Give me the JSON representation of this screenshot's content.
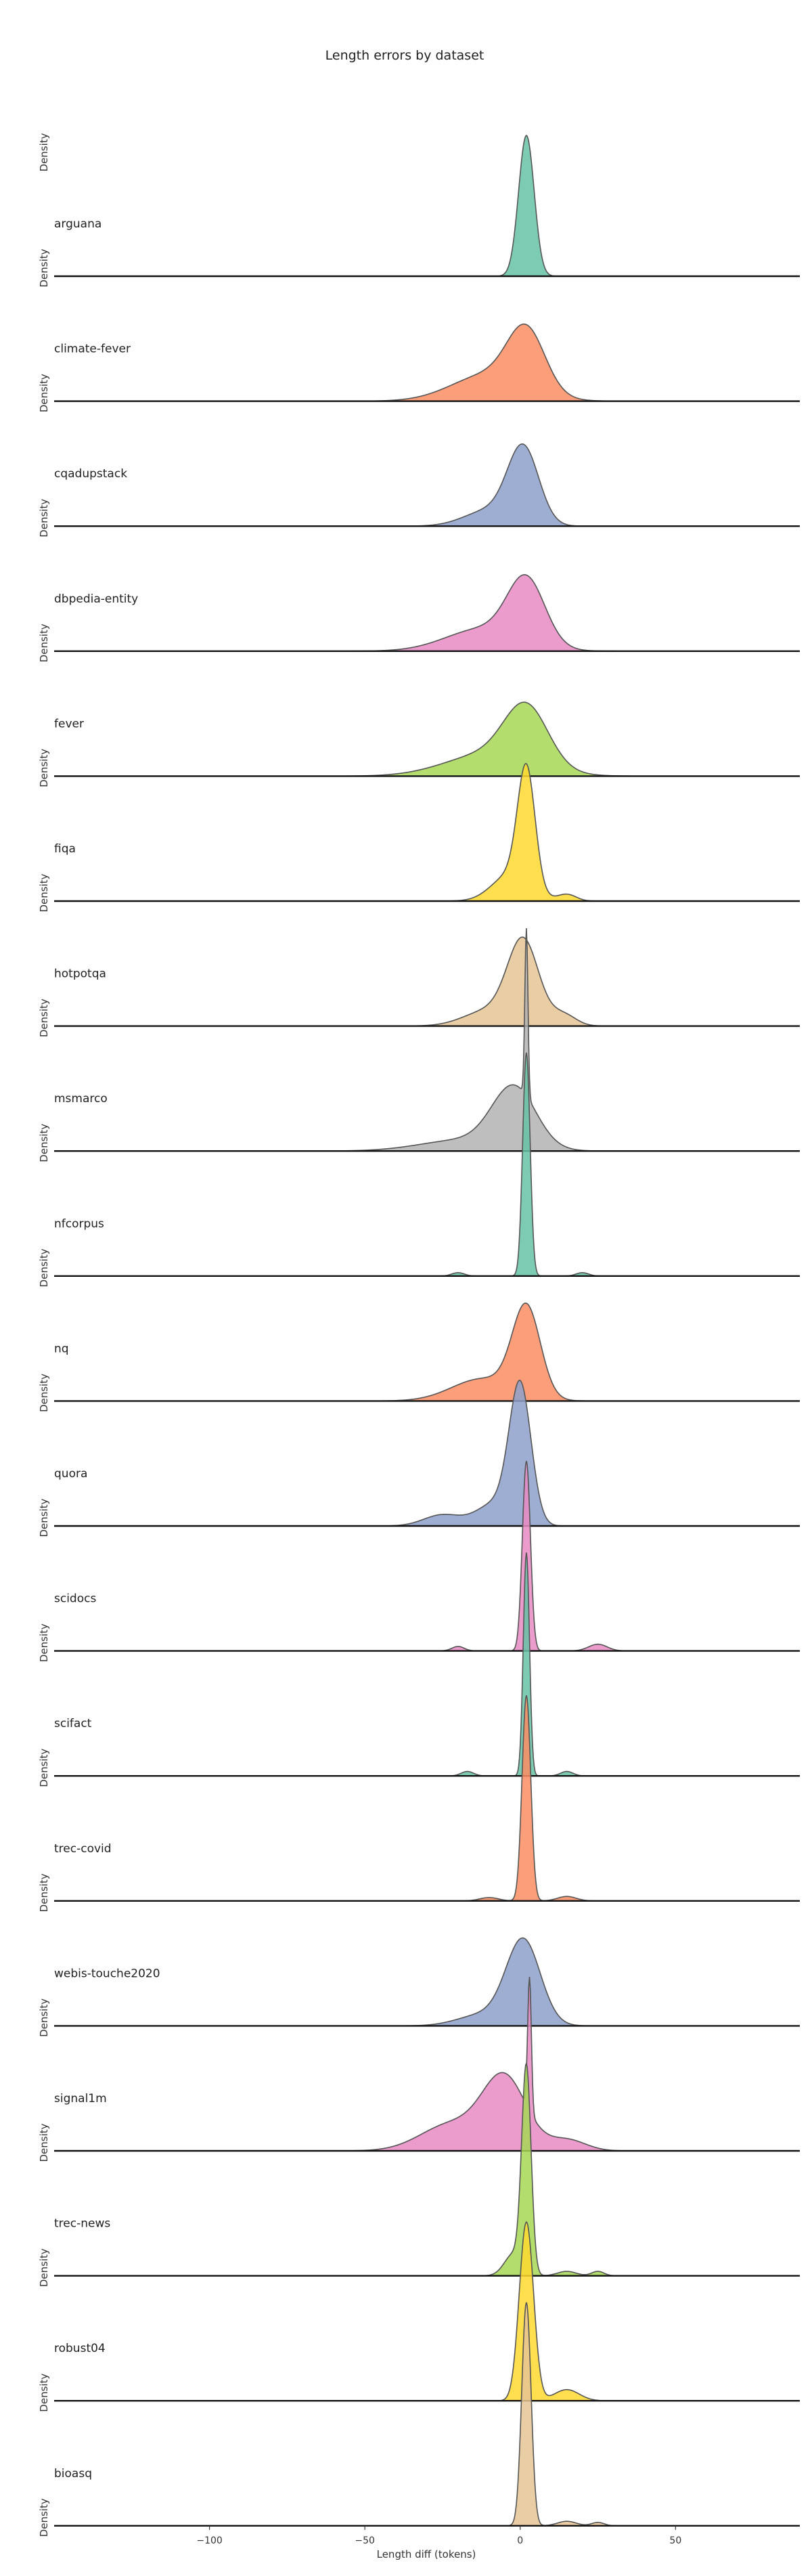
{
  "chart_data": {
    "type": "area",
    "title": "Length errors by dataset",
    "xlabel": "Length diff (tokens)",
    "ylabel": "Density",
    "xlim": [
      -150,
      90
    ],
    "xticks": [
      -100,
      -50,
      0,
      50
    ],
    "xtick_labels": [
      "−100",
      "−50",
      "0",
      "50"
    ],
    "grid": false,
    "legend": "none",
    "series": [
      {
        "name": "arguana",
        "color": "#66c2a5",
        "center": 2,
        "sigma": 2.5,
        "peak": 0.63,
        "side": []
      },
      {
        "name": "climate-fever",
        "color": "#fc8d62",
        "center": 2,
        "sigma": 6,
        "peak": 0.27,
        "side": [
          [
            -10,
            12,
            0.12
          ]
        ]
      },
      {
        "name": "cqadupstack",
        "color": "#8da0cb",
        "center": 1,
        "sigma": 5,
        "peak": 0.34,
        "side": [
          [
            -10,
            8,
            0.07
          ]
        ]
      },
      {
        "name": "dbpedia-entity",
        "color": "#e78ac3",
        "center": 2,
        "sigma": 6,
        "peak": 0.29,
        "side": [
          [
            -12,
            12,
            0.1
          ]
        ]
      },
      {
        "name": "fever",
        "color": "#a6d854",
        "center": 2,
        "sigma": 7,
        "peak": 0.26,
        "side": [
          [
            -10,
            14,
            0.1
          ]
        ]
      },
      {
        "name": "fiqa",
        "color": "#ffd92f",
        "center": 2,
        "sigma": 2.8,
        "peak": 0.53,
        "side": [
          [
            -3,
            6,
            0.12
          ],
          [
            15,
            3,
            0.03
          ]
        ]
      },
      {
        "name": "hotpotqa",
        "color": "#e5c494",
        "center": 1,
        "sigma": 5,
        "peak": 0.37,
        "side": [
          [
            -10,
            8,
            0.07
          ],
          [
            14,
            4,
            0.05
          ]
        ]
      },
      {
        "name": "msmarco",
        "color": "#b3b3b3",
        "center": -2,
        "sigma": 7,
        "peak": 0.27,
        "side": [
          [
            2,
            0.5,
            0.75
          ],
          [
            -18,
            14,
            0.05
          ]
        ]
      },
      {
        "name": "nfcorpus",
        "color": "#66c2a5",
        "center": 2,
        "sigma": 1.2,
        "peak": 1.0,
        "side": [
          [
            -20,
            2,
            0.015
          ],
          [
            20,
            2,
            0.015
          ]
        ]
      },
      {
        "name": "nq",
        "color": "#fc8d62",
        "center": 2,
        "sigma": 4.5,
        "peak": 0.4,
        "side": [
          [
            -12,
            10,
            0.1
          ]
        ]
      },
      {
        "name": "quora",
        "color": "#8da0cb",
        "center": 0,
        "sigma": 3.5,
        "peak": 0.61,
        "side": [
          [
            -25,
            6,
            0.05
          ],
          [
            -8,
            6,
            0.1
          ]
        ]
      },
      {
        "name": "scidocs",
        "color": "#e78ac3",
        "center": 2,
        "sigma": 1.3,
        "peak": 0.85,
        "side": [
          [
            -20,
            2,
            0.02
          ],
          [
            25,
            3,
            0.03
          ]
        ]
      },
      {
        "name": "scifact",
        "color": "#66c2a5",
        "center": 2,
        "sigma": 1.0,
        "peak": 1.0,
        "side": [
          [
            -17,
            2,
            0.02
          ],
          [
            15,
            2,
            0.02
          ]
        ]
      },
      {
        "name": "trec-covid",
        "color": "#fc8d62",
        "center": 2,
        "sigma": 1.4,
        "peak": 0.92,
        "side": [
          [
            -10,
            3,
            0.015
          ],
          [
            15,
            3,
            0.02
          ]
        ]
      },
      {
        "name": "webis-touche2020",
        "color": "#8da0cb",
        "center": 1,
        "sigma": 5.5,
        "peak": 0.38,
        "side": [
          [
            -12,
            8,
            0.05
          ]
        ]
      },
      {
        "name": "signal1m",
        "color": "#e78ac3",
        "center": -5,
        "sigma": 7,
        "peak": 0.32,
        "side": [
          [
            -22,
            10,
            0.12
          ],
          [
            3,
            0.6,
            0.6
          ],
          [
            15,
            6,
            0.05
          ]
        ]
      },
      {
        "name": "trec-news",
        "color": "#a6d854",
        "center": 2,
        "sigma": 1.5,
        "peak": 0.91,
        "side": [
          [
            -2,
            3,
            0.1
          ],
          [
            15,
            3,
            0.02
          ],
          [
            25,
            2,
            0.02
          ]
        ]
      },
      {
        "name": "robust04",
        "color": "#ffd92f",
        "center": 2,
        "sigma": 2.3,
        "peak": 0.8,
        "side": [
          [
            15,
            4,
            0.05
          ]
        ]
      },
      {
        "name": "bioasq",
        "color": "#e5c494",
        "center": 2,
        "sigma": 1.5,
        "peak": 1.0,
        "side": [
          [
            15,
            3,
            0.02
          ],
          [
            25,
            2,
            0.015
          ]
        ]
      }
    ]
  }
}
